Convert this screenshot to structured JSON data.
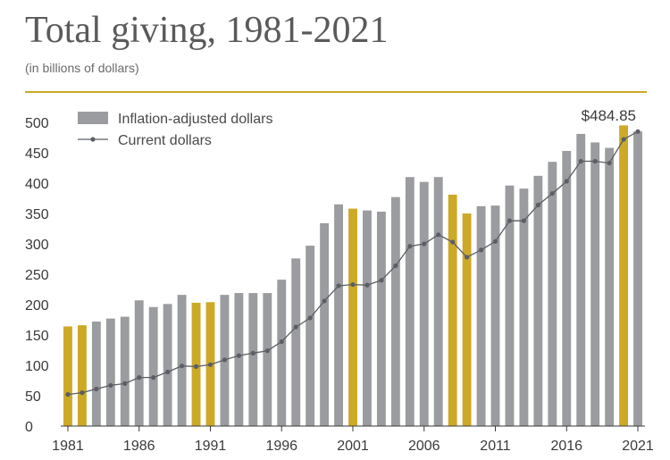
{
  "header": {
    "title": "Total giving, 1981-2021",
    "subtitle": "(in billions of dollars)"
  },
  "colors": {
    "bar": "#9b9c9f",
    "highlight": "#cda928",
    "line": "#5b5e64",
    "rule": "#cda928"
  },
  "chart_data": {
    "type": "bar",
    "title": "Total giving, 1981-2021",
    "subtitle": "(in billions of dollars)",
    "xlabel": "",
    "ylabel": "",
    "ylim": [
      0,
      500
    ],
    "yticks": [
      0,
      50,
      100,
      150,
      200,
      250,
      300,
      350,
      400,
      450,
      500
    ],
    "xtick_labels": [
      "1981",
      "1986",
      "1991",
      "1996",
      "2001",
      "2006",
      "2011",
      "2016",
      "2021"
    ],
    "grid": false,
    "legend": "top-left",
    "categories": [
      "1981",
      "1982",
      "1983",
      "1984",
      "1985",
      "1986",
      "1987",
      "1988",
      "1989",
      "1990",
      "1991",
      "1992",
      "1993",
      "1994",
      "1995",
      "1996",
      "1997",
      "1998",
      "1999",
      "2000",
      "2001",
      "2002",
      "2003",
      "2004",
      "2005",
      "2006",
      "2007",
      "2008",
      "2009",
      "2010",
      "2011",
      "2012",
      "2013",
      "2014",
      "2015",
      "2016",
      "2017",
      "2018",
      "2019",
      "2020",
      "2021"
    ],
    "highlighted_categories": [
      "1981",
      "1982",
      "1990",
      "1991",
      "2001",
      "2008",
      "2009",
      "2020"
    ],
    "series": [
      {
        "name": "Inflation-adjusted dollars",
        "type": "bar",
        "values": [
          164,
          166,
          172,
          177,
          180,
          207,
          196,
          201,
          216,
          203,
          204,
          216,
          219,
          219,
          219,
          241,
          276,
          297,
          334,
          365,
          358,
          355,
          353,
          377,
          410,
          402,
          410,
          381,
          350,
          362,
          363,
          396,
          391,
          412,
          435,
          453,
          481,
          467,
          458,
          495,
          485
        ]
      },
      {
        "name": "Current dollars",
        "type": "line",
        "values": [
          52,
          55,
          61,
          67,
          70,
          80,
          80,
          89,
          99,
          98,
          101,
          109,
          116,
          120,
          124,
          139,
          163,
          178,
          206,
          231,
          233,
          232,
          240,
          264,
          296,
          300,
          315,
          303,
          278,
          290,
          304,
          338,
          338,
          364,
          383,
          403,
          436,
          436,
          433,
          472,
          484.85
        ]
      }
    ],
    "annotations": [
      {
        "category": "2021",
        "text": "$484.85"
      }
    ]
  }
}
